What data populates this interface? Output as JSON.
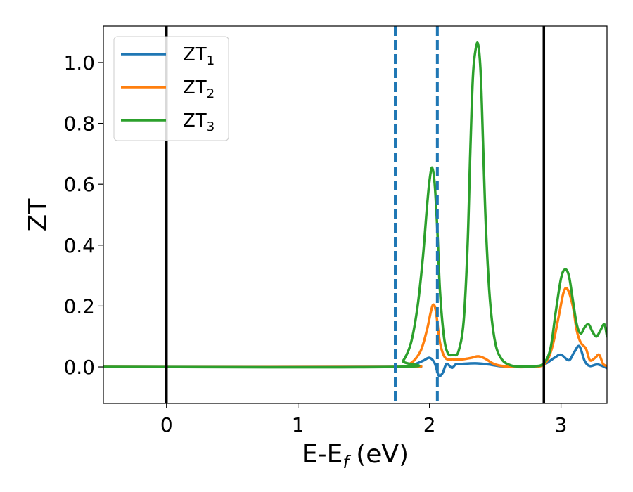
{
  "chart_data": {
    "type": "line",
    "xlabel": "E-E",
    "xlabel_sub": "f",
    "xlabel_unit": "(eV)",
    "ylabel": "ZT",
    "xlim": [
      -0.48,
      3.35
    ],
    "ylim": [
      -0.12,
      1.12
    ],
    "xticks": [
      0,
      1,
      2,
      3
    ],
    "xtick_labels": [
      "0",
      "1",
      "2",
      "3"
    ],
    "yticks": [
      0.0,
      0.2,
      0.4,
      0.6,
      0.8,
      1.0
    ],
    "ytick_labels": [
      "0.0",
      "0.2",
      "0.4",
      "0.6",
      "0.8",
      "1.0"
    ],
    "grid": false,
    "legend_position": "top-left",
    "vertical_lines": [
      {
        "x": 0.0,
        "style": "solid",
        "color": "#000000"
      },
      {
        "x": 2.87,
        "style": "solid",
        "color": "#000000"
      },
      {
        "x": 1.74,
        "style": "dashed",
        "color": "#1f77b4"
      },
      {
        "x": 2.06,
        "style": "dashed",
        "color": "#1f77b4"
      }
    ],
    "series": [
      {
        "name": "ZT",
        "name_sub": "1",
        "color": "#1f77b4",
        "x": [
          -0.48,
          1.74,
          1.85,
          1.95,
          2.0,
          2.04,
          2.07,
          2.1,
          2.13,
          2.17,
          2.2,
          2.25,
          2.35,
          2.45,
          2.55,
          2.7,
          2.85,
          2.95,
          3.0,
          3.06,
          3.1,
          3.14,
          3.18,
          3.22,
          3.28,
          3.35
        ],
        "y": [
          0.0,
          0.0,
          0.003,
          0.02,
          0.03,
          0.012,
          -0.028,
          -0.02,
          0.01,
          -0.003,
          0.008,
          0.01,
          0.012,
          0.008,
          0.002,
          0.0,
          0.004,
          0.03,
          0.04,
          0.022,
          0.048,
          0.068,
          0.02,
          0.003,
          0.008,
          -0.004
        ]
      },
      {
        "name": "ZT",
        "name_sub": "2",
        "color": "#ff7f0e",
        "x": [
          -0.48,
          1.74,
          1.85,
          1.93,
          1.98,
          2.01,
          2.03,
          2.05,
          2.08,
          2.12,
          2.18,
          2.25,
          2.32,
          2.37,
          2.42,
          2.5,
          2.6,
          2.75,
          2.87,
          2.93,
          2.98,
          3.02,
          3.05,
          3.09,
          3.12,
          3.15,
          3.19,
          3.22,
          3.26,
          3.29,
          3.32,
          3.35
        ],
        "y": [
          0.0,
          0.0,
          0.01,
          0.05,
          0.12,
          0.18,
          0.205,
          0.18,
          0.08,
          0.03,
          0.025,
          0.025,
          0.03,
          0.035,
          0.028,
          0.008,
          0.001,
          0.0,
          0.008,
          0.06,
          0.16,
          0.245,
          0.255,
          0.2,
          0.12,
          0.08,
          0.06,
          0.022,
          0.03,
          0.04,
          0.01,
          0.003
        ]
      },
      {
        "name": "ZT",
        "name_sub": "3",
        "color": "#2ca02c",
        "x": [
          -0.48,
          1.74,
          1.8,
          1.86,
          1.91,
          1.95,
          1.98,
          2.0,
          2.02,
          2.04,
          2.06,
          2.08,
          2.11,
          2.14,
          2.18,
          2.22,
          2.26,
          2.29,
          2.31,
          2.33,
          2.35,
          2.37,
          2.39,
          2.41,
          2.43,
          2.46,
          2.5,
          2.55,
          2.62,
          2.7,
          2.8,
          2.87,
          2.92,
          2.96,
          3.0,
          3.03,
          3.06,
          3.09,
          3.12,
          3.15,
          3.18,
          3.21,
          3.24,
          3.27,
          3.3,
          3.33,
          3.35
        ],
        "y": [
          0.0,
          0.0,
          0.02,
          0.08,
          0.2,
          0.36,
          0.52,
          0.61,
          0.655,
          0.6,
          0.45,
          0.25,
          0.1,
          0.045,
          0.04,
          0.05,
          0.15,
          0.4,
          0.7,
          0.95,
          1.04,
          1.06,
          0.96,
          0.7,
          0.45,
          0.22,
          0.08,
          0.025,
          0.005,
          0.001,
          0.002,
          0.012,
          0.06,
          0.18,
          0.29,
          0.32,
          0.3,
          0.22,
          0.14,
          0.11,
          0.13,
          0.14,
          0.115,
          0.1,
          0.12,
          0.14,
          0.1
        ]
      }
    ]
  }
}
